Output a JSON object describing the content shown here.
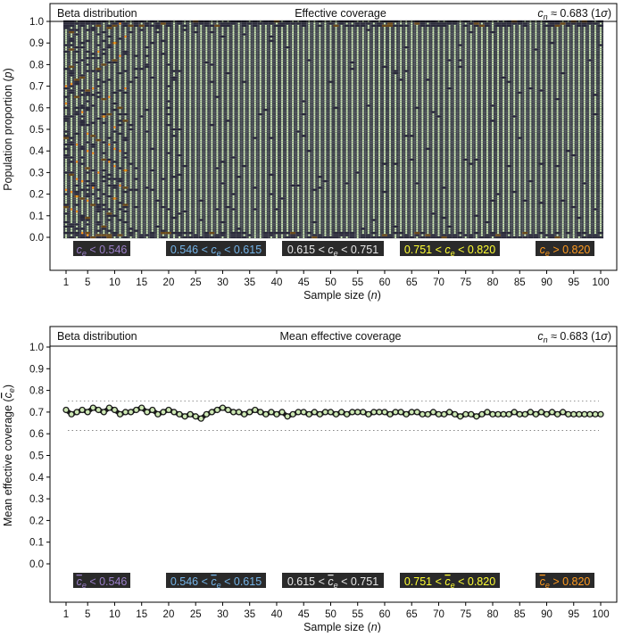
{
  "colors": {
    "lt_0546": "#9b7fc9",
    "b_0546_0615": "#74b4e8",
    "b_0615_0751": "#e8e8e8",
    "b_0751_0820": "#ffff33",
    "gt_0820": "#ff9a1f",
    "dot_fill": "#cde8b4",
    "legend_bg": "#2a2a2a",
    "cell_dark": "#2a2a3a"
  },
  "chart_data": [
    {
      "type": "heatmap",
      "header_left": "Beta distribution",
      "title": "Effective coverage",
      "header_right": "c_n ≈ 0.683 (1σ)",
      "xlabel": "Sample size (n)",
      "ylabel": "Population proportion (p)",
      "x_ticks": [
        1,
        5,
        10,
        15,
        20,
        25,
        30,
        35,
        40,
        45,
        50,
        55,
        60,
        65,
        70,
        75,
        80,
        85,
        90,
        95,
        100
      ],
      "y_ticks": [
        0.0,
        0.1,
        0.2,
        0.3,
        0.4,
        0.5,
        0.6,
        0.7,
        0.8,
        0.9,
        1.0
      ],
      "xlim": [
        1,
        100
      ],
      "ylim": [
        0.0,
        1.0
      ],
      "grid": {
        "n_min": 1,
        "n_max": 100,
        "p_step": 0.01
      },
      "legend": [
        {
          "label": "c_e < 0.546",
          "color_key": "lt_0546"
        },
        {
          "label": "0.546 < c_e < 0.615",
          "color_key": "b_0546_0615"
        },
        {
          "label": "0.615 < c_e < 0.751",
          "color_key": "b_0615_0751"
        },
        {
          "label": "0.751 < c_e < 0.820",
          "color_key": "b_0751_0820"
        },
        {
          "label": "c_e > 0.820",
          "color_key": "gt_0820"
        }
      ]
    },
    {
      "type": "line",
      "header_left": "Beta distribution",
      "title": "Mean effective coverage",
      "header_right": "c_n ≈ 0.683 (1σ)",
      "xlabel": "Sample size (n)",
      "ylabel": "Mean effective coverage (c̄_e)",
      "x_ticks": [
        1,
        5,
        10,
        15,
        20,
        25,
        30,
        35,
        40,
        45,
        50,
        55,
        60,
        65,
        70,
        75,
        80,
        85,
        90,
        95,
        100
      ],
      "y_ticks": [
        0.0,
        0.1,
        0.2,
        0.3,
        0.4,
        0.5,
        0.6,
        0.7,
        0.8,
        0.9,
        1.0
      ],
      "xlim": [
        1,
        100
      ],
      "ylim": [
        0.0,
        1.0
      ],
      "reference_lines": [
        0.615,
        0.751
      ],
      "series": [
        {
          "x": [
            1,
            2,
            3,
            4,
            5,
            6,
            7,
            8,
            9,
            10,
            11,
            12,
            13,
            14,
            15,
            16,
            17,
            18,
            19,
            20,
            21,
            22,
            23,
            24,
            25,
            26,
            27,
            28,
            29,
            30,
            31,
            32,
            33,
            34,
            35,
            36,
            37,
            38,
            39,
            40,
            41,
            42,
            43,
            44,
            45,
            46,
            47,
            48,
            49,
            50,
            51,
            52,
            53,
            54,
            55,
            56,
            57,
            58,
            59,
            60,
            61,
            62,
            63,
            64,
            65,
            66,
            67,
            68,
            69,
            70,
            71,
            72,
            73,
            74,
            75,
            76,
            77,
            78,
            79,
            80,
            81,
            82,
            83,
            84,
            85,
            86,
            87,
            88,
            89,
            90,
            91,
            92,
            93,
            94,
            95,
            96,
            97,
            98,
            99,
            100
          ],
          "values": [
            0.71,
            0.69,
            0.7,
            0.71,
            0.7,
            0.72,
            0.71,
            0.7,
            0.72,
            0.71,
            0.69,
            0.7,
            0.7,
            0.71,
            0.72,
            0.7,
            0.71,
            0.69,
            0.7,
            0.71,
            0.7,
            0.69,
            0.68,
            0.69,
            0.68,
            0.67,
            0.69,
            0.7,
            0.71,
            0.72,
            0.71,
            0.7,
            0.7,
            0.69,
            0.7,
            0.71,
            0.7,
            0.69,
            0.7,
            0.69,
            0.7,
            0.68,
            0.69,
            0.7,
            0.7,
            0.69,
            0.7,
            0.69,
            0.7,
            0.7,
            0.69,
            0.7,
            0.69,
            0.7,
            0.7,
            0.7,
            0.69,
            0.7,
            0.7,
            0.7,
            0.69,
            0.7,
            0.7,
            0.69,
            0.7,
            0.7,
            0.69,
            0.69,
            0.7,
            0.69,
            0.69,
            0.7,
            0.69,
            0.68,
            0.69,
            0.69,
            0.68,
            0.69,
            0.7,
            0.69,
            0.69,
            0.69,
            0.69,
            0.7,
            0.69,
            0.69,
            0.7,
            0.69,
            0.7,
            0.69,
            0.7,
            0.69,
            0.7,
            0.69,
            0.69,
            0.69,
            0.69,
            0.69,
            0.69,
            0.69
          ]
        }
      ],
      "legend": [
        {
          "label": "c̄_e < 0.546",
          "color_key": "lt_0546"
        },
        {
          "label": "0.546 < c̄_e < 0.615",
          "color_key": "b_0546_0615"
        },
        {
          "label": "0.615 < c̄_e < 0.751",
          "color_key": "b_0615_0751"
        },
        {
          "label": "0.751 < c̄_e < 0.820",
          "color_key": "b_0751_0820"
        },
        {
          "label": "c̄_e > 0.820",
          "color_key": "gt_0820"
        }
      ]
    }
  ]
}
